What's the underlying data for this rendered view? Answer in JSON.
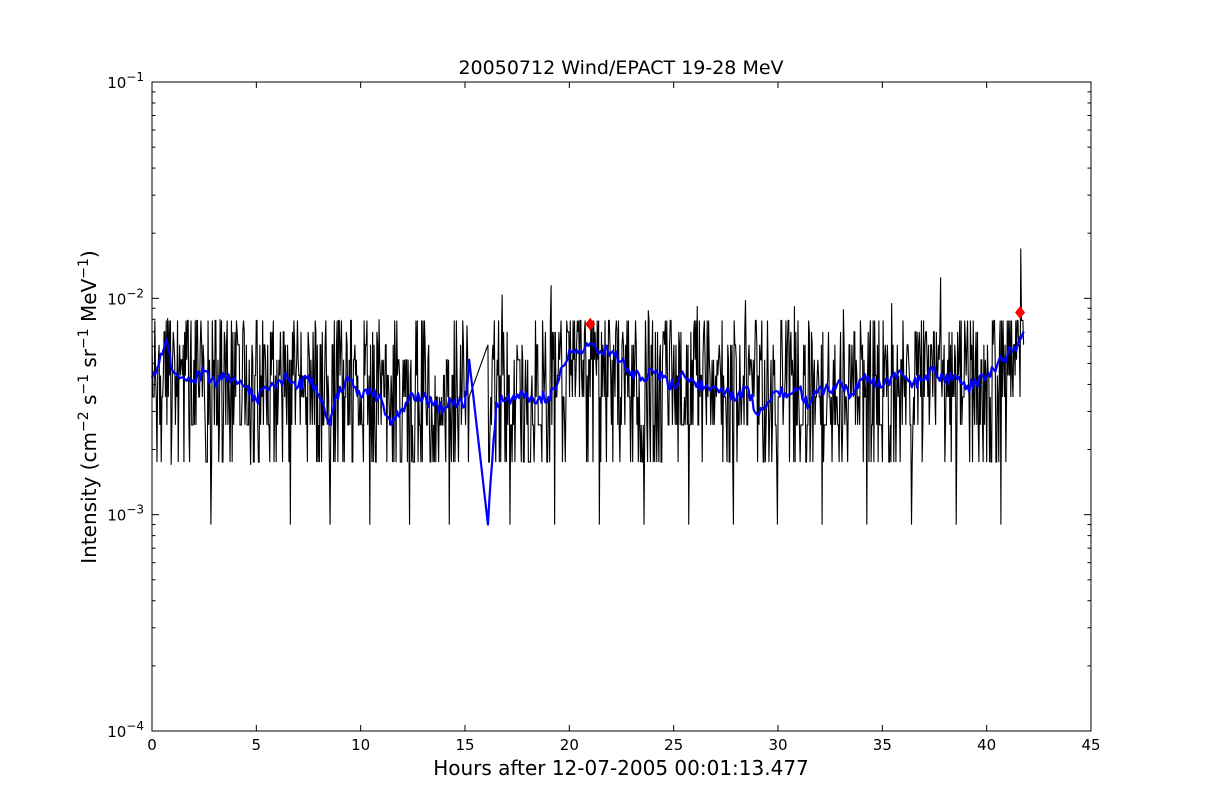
{
  "chart_data": {
    "type": "line",
    "title": "20050712 Wind/EPACT 19-28 MeV",
    "xlabel": "Hours after 12-07-2005 00:01:13.477",
    "ylabel_parts": [
      {
        "t": "Intensity (cm"
      },
      {
        "t": "−2",
        "sup": true
      },
      {
        "t": " s"
      },
      {
        "t": "−1",
        "sup": true
      },
      {
        "t": " sr"
      },
      {
        "t": "−1",
        "sup": true
      },
      {
        "t": " MeV"
      },
      {
        "t": "−1",
        "sup": true
      },
      {
        "t": ")"
      }
    ],
    "xlim": [
      0,
      45
    ],
    "ylim": [
      0.0001,
      0.1
    ],
    "yscale": "log",
    "grid": false,
    "xticks": [
      0,
      5,
      10,
      15,
      20,
      25,
      30,
      35,
      40,
      45
    ],
    "yticks": [
      {
        "value": 0.0001,
        "base": "10",
        "exp": "−4"
      },
      {
        "value": 0.001,
        "base": "10",
        "exp": "−3"
      },
      {
        "value": 0.01,
        "base": "10",
        "exp": "−2"
      },
      {
        "value": 0.1,
        "base": "10",
        "exp": "−1"
      }
    ],
    "series": [
      {
        "style": "raw",
        "color": "#000000",
        "segments": [
          {
            "x_range": [
              0,
              15.2
            ],
            "x": [
              0,
              0.5,
              1.0,
              1.3,
              1.5,
              2.0,
              2.5,
              3.0,
              3.4,
              3.8,
              4.5,
              5.0,
              5.5,
              6.0,
              6.5,
              7.0,
              7.5,
              8.0,
              8.5,
              9.0,
              9.5,
              10.0,
              10.5,
              11.0,
              11.5,
              12.0,
              12.5,
              13.0,
              13.5,
              14.0,
              14.5,
              15.0
            ],
            "baseline": [
              0.0045,
              0.005,
              0.0048,
              0.0044,
              0.0043,
              0.0045,
              0.0046,
              0.0044,
              0.0042,
              0.0041,
              0.0039,
              0.0036,
              0.0037,
              0.004,
              0.0042,
              0.0043,
              0.0041,
              0.0038,
              0.0037,
              0.0039,
              0.0041,
              0.004,
              0.0037,
              0.0035,
              0.0033,
              0.0031,
              0.0032,
              0.0034,
              0.0033,
              0.0032,
              0.0033,
              0.0034
            ],
            "low_dips": [
              0.0017,
              0.0009,
              0.0017,
              0.0009,
              0.0009,
              0.0009,
              0.0009,
              0.0009
            ],
            "high_peaks": [
              0.0081,
              0.008,
              0.0079,
              0.0079,
              0.008,
              0.0075
            ]
          },
          {
            "x_range": [
              16.1,
              41.8
            ],
            "x": [
              16.1,
              16.5,
              17.0,
              17.5,
              18.0,
              18.5,
              19.0,
              19.5,
              20.0,
              20.5,
              21.0,
              21.5,
              22.0,
              22.5,
              23.0,
              23.5,
              24.0,
              24.5,
              25.0,
              25.5,
              26.0,
              26.5,
              27.0,
              27.5,
              28.0,
              28.5,
              29.0,
              29.5,
              30.0,
              30.5,
              31.0,
              31.5,
              32.0,
              32.5,
              33.0,
              33.5,
              34.0,
              34.5,
              35.0,
              35.5,
              36.0,
              36.5,
              37.0,
              37.5,
              38.0,
              38.5,
              39.0,
              39.5,
              40.0,
              40.5,
              41.0,
              41.5,
              41.8
            ],
            "baseline": [
              0.0033,
              0.0035,
              0.0037,
              0.0036,
              0.0035,
              0.0036,
              0.0042,
              0.005,
              0.0057,
              0.0058,
              0.0056,
              0.0055,
              0.0052,
              0.0048,
              0.0046,
              0.0045,
              0.0044,
              0.0043,
              0.0042,
              0.004,
              0.004,
              0.004,
              0.0039,
              0.0038,
              0.0037,
              0.0036,
              0.0033,
              0.0033,
              0.0036,
              0.0038,
              0.0038,
              0.0039,
              0.0039,
              0.004,
              0.004,
              0.0041,
              0.0041,
              0.0041,
              0.0042,
              0.0043,
              0.0044,
              0.0044,
              0.0043,
              0.0044,
              0.0043,
              0.0042,
              0.0042,
              0.0043,
              0.0048,
              0.0055,
              0.006,
              0.0068,
              0.0072
            ],
            "low_dips": [
              0.0009,
              0.0009,
              0.0009,
              0.0009,
              0.0009,
              0.0009,
              0.0009,
              0.0009,
              0.0009,
              0.0009,
              0.0009,
              0.0009
            ],
            "high_peaks": [
              0.0104,
              0.0115,
              0.0098,
              0.0088,
              0.0092,
              0.0098,
              0.0092,
              0.0089,
              0.0095,
              0.0125,
              0.017
            ]
          }
        ]
      },
      {
        "style": "smoothed",
        "color": "#0000ff",
        "x": [
          0,
          0.5,
          0.7,
          1.0,
          1.5,
          2.0,
          2.5,
          3.0,
          3.5,
          4.0,
          4.5,
          5.0,
          5.5,
          6.0,
          6.5,
          7.0,
          7.5,
          8.0,
          8.5,
          9.0,
          9.5,
          10.0,
          10.5,
          11.0,
          11.5,
          12.0,
          12.5,
          13.0,
          13.5,
          14.0,
          14.5,
          15.0,
          15.2,
          16.1,
          16.5,
          17.0,
          17.5,
          18.0,
          18.5,
          19.0,
          19.5,
          20.0,
          20.5,
          21.0,
          21.5,
          22.0,
          22.5,
          23.0,
          23.5,
          24.0,
          24.5,
          25.0,
          25.5,
          26.0,
          26.5,
          27.0,
          27.5,
          28.0,
          28.5,
          29.0,
          29.5,
          30.0,
          30.5,
          31.0,
          31.5,
          32.0,
          32.5,
          33.0,
          33.5,
          34.0,
          34.5,
          35.0,
          35.5,
          36.0,
          36.5,
          37.0,
          37.5,
          38.0,
          38.5,
          39.0,
          39.5,
          40.0,
          40.5,
          41.0,
          41.5,
          41.8
        ],
        "y": [
          0.0043,
          0.0055,
          0.0065,
          0.0046,
          0.0043,
          0.0042,
          0.0046,
          0.0041,
          0.0044,
          0.0042,
          0.0039,
          0.0034,
          0.0038,
          0.0041,
          0.0043,
          0.0039,
          0.0044,
          0.0036,
          0.0026,
          0.0039,
          0.0042,
          0.0035,
          0.0037,
          0.0034,
          0.0026,
          0.0031,
          0.0036,
          0.0035,
          0.0032,
          0.0031,
          0.0034,
          0.0032,
          0.0052,
          0.0009,
          0.0033,
          0.0034,
          0.0036,
          0.0035,
          0.0034,
          0.0035,
          0.0042,
          0.0058,
          0.0057,
          0.0062,
          0.0057,
          0.0056,
          0.0051,
          0.0046,
          0.0043,
          0.0046,
          0.0043,
          0.0039,
          0.0044,
          0.0041,
          0.0039,
          0.0039,
          0.0037,
          0.0034,
          0.0039,
          0.0029,
          0.0033,
          0.0037,
          0.0036,
          0.0038,
          0.0032,
          0.0039,
          0.0037,
          0.0041,
          0.0036,
          0.0042,
          0.0041,
          0.0039,
          0.0044,
          0.0044,
          0.0041,
          0.0042,
          0.0048,
          0.0041,
          0.0044,
          0.0038,
          0.0041,
          0.0043,
          0.0049,
          0.0055,
          0.0062,
          0.007
        ]
      }
    ],
    "markers": [
      {
        "x": 21.0,
        "y": 0.0076,
        "color": "#ff0000",
        "shape": "diamond"
      },
      {
        "x": 41.6,
        "y": 0.0086,
        "color": "#ff0000",
        "shape": "diamond"
      }
    ]
  }
}
